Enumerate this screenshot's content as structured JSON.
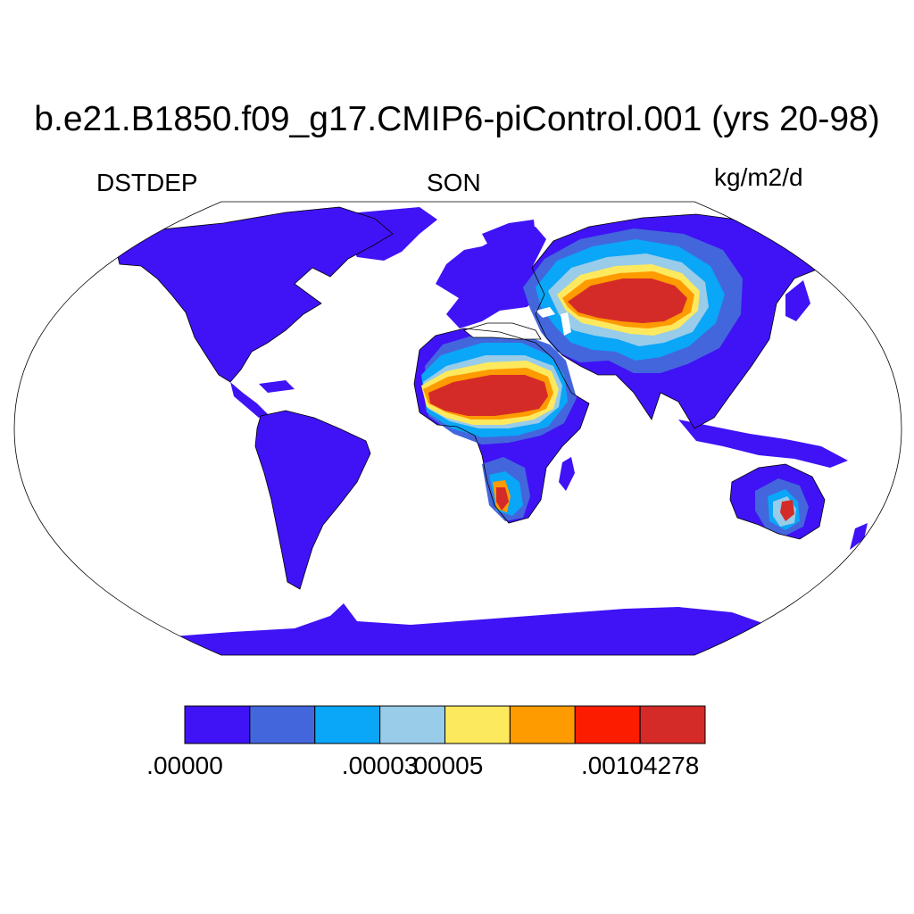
{
  "title": "b.e21.B1850.f09_g17.CMIP6-piControl.001 (yrs 20-98)",
  "variable": "DSTDEP",
  "season": "SON",
  "units": "kg/m2/d",
  "colorbar": {
    "colors": [
      "#3f13f5",
      "#4466dd",
      "#0aa6f7",
      "#98cce9",
      "#fde95e",
      "#fd9b00",
      "#fc1c00",
      "#d52b28"
    ],
    "labels": [
      {
        "text": ".00000",
        "boundary": 0
      },
      {
        "text": ".00003",
        "boundary": 3
      },
      {
        "text": ".00005",
        "boundary": 4
      },
      {
        "text": ".00104278",
        "boundary": 7
      }
    ]
  },
  "map": {
    "projection": "Robinson",
    "ocean_color": "#ffffff",
    "land_base_color": "#3f13f5"
  }
}
